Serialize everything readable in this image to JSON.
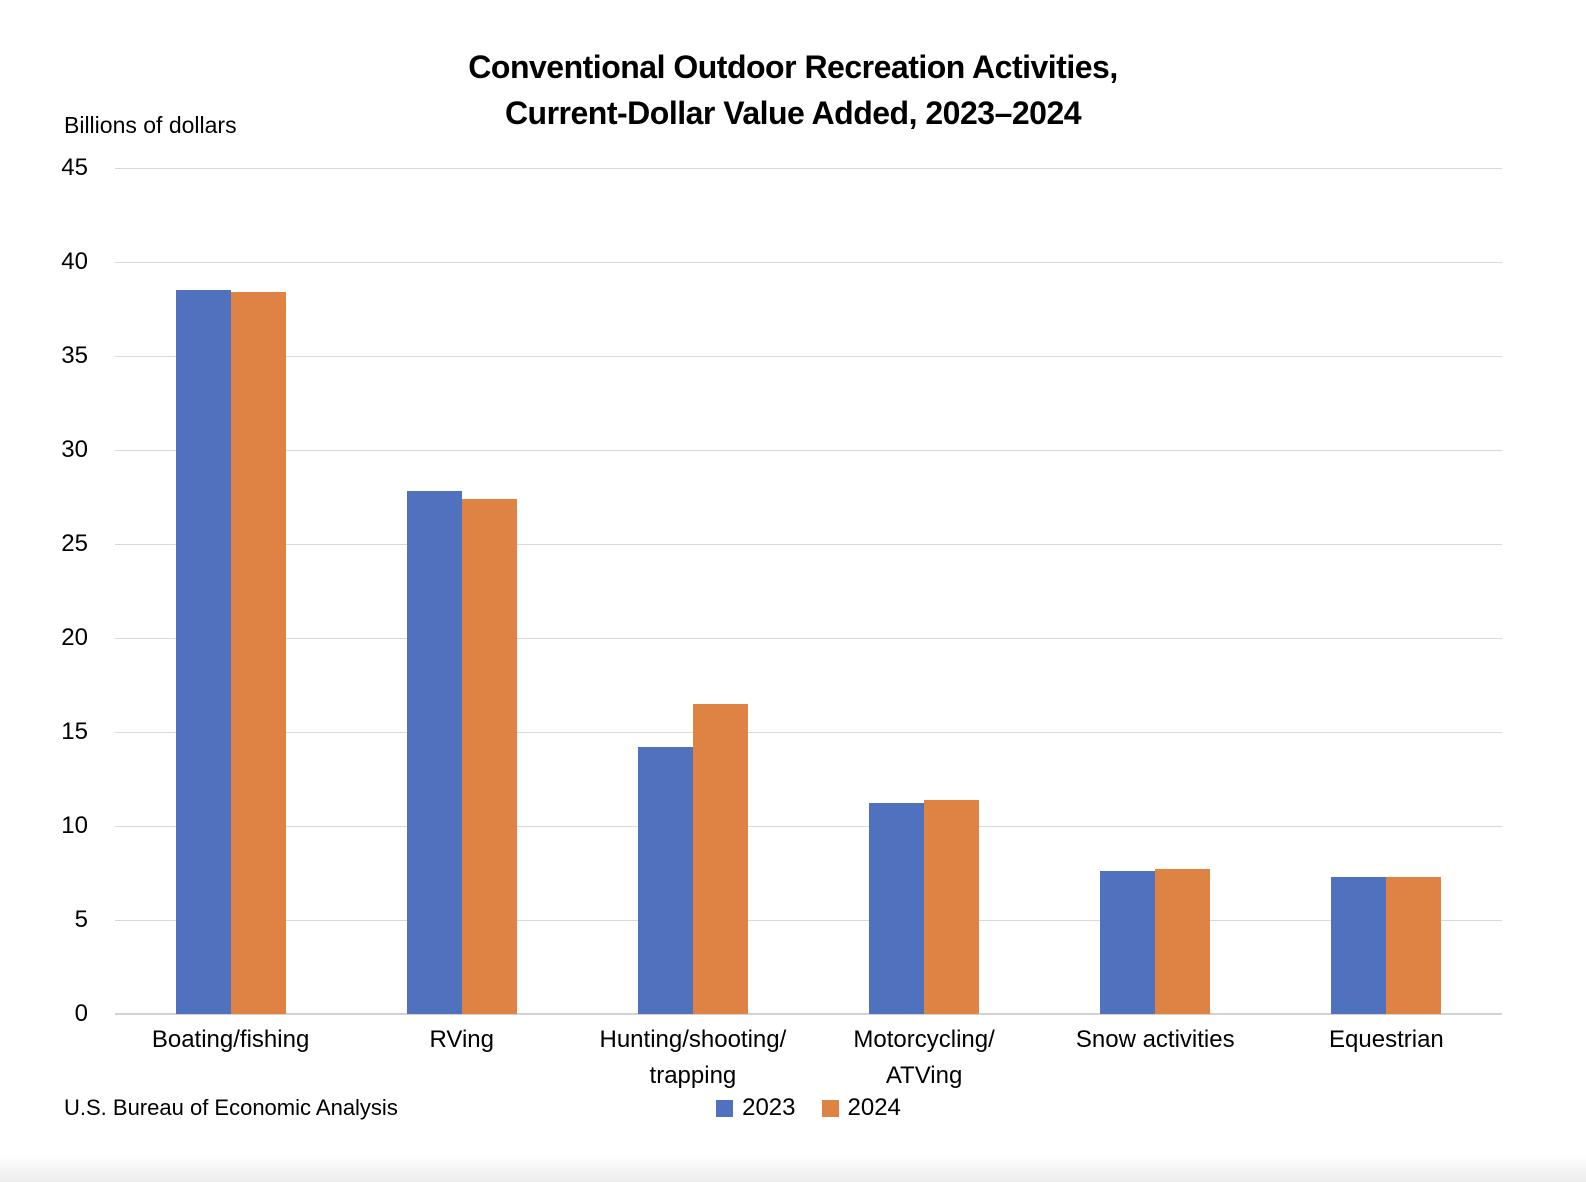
{
  "chart_data": {
    "type": "bar",
    "title": "Conventional Outdoor Recreation Activities, Current-Dollar Value Added, 2023–2024",
    "title_line1": "Conventional Outdoor Recreation Activities,",
    "title_line2": "Current-Dollar Value Added, 2023–2024",
    "ylabel": "Billions of dollars",
    "xlabel": "",
    "categories": [
      "Boating/fishing",
      "RVing",
      "Hunting/shooting/\ntrapping",
      "Motorcycling/\nATVing",
      "Snow activities",
      "Equestrian"
    ],
    "series": [
      {
        "name": "2023",
        "color": "#4F71BE",
        "values": [
          38.5,
          27.8,
          14.2,
          11.2,
          7.6,
          7.3
        ]
      },
      {
        "name": "2024",
        "color": "#DE8344",
        "values": [
          38.4,
          27.4,
          16.5,
          11.4,
          7.7,
          7.3
        ]
      }
    ],
    "ylim": [
      0,
      45
    ],
    "yticks": [
      0,
      5,
      10,
      15,
      20,
      25,
      30,
      35,
      40,
      45
    ],
    "grid": true,
    "legend_position": "bottom-center",
    "source": "U.S. Bureau of Economic Analysis"
  },
  "colors": {
    "series_2023": "#4F71BE",
    "series_2024": "#DE8344",
    "gridline": "#D9D9D9",
    "axis_line": "#D2D2D2",
    "text": "#000000",
    "background": "#FFFFFF"
  }
}
